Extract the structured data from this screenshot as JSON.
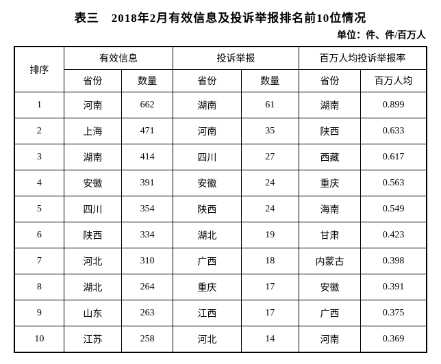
{
  "title": "表三　2018年2月有效信息及投诉举报排名前10位情况",
  "unit_label": "单位：件、件/百万人",
  "colors": {
    "text": "#000000",
    "border": "#000000",
    "background": "#ffffff"
  },
  "table": {
    "rank_header": "排序",
    "groups": [
      {
        "label": "有效信息",
        "sub": [
          "省份",
          "数量"
        ]
      },
      {
        "label": "投诉举报",
        "sub": [
          "省份",
          "数量"
        ]
      },
      {
        "label": "百万人均投诉举报率",
        "sub": [
          "省份",
          "百万人均"
        ]
      }
    ],
    "rows": [
      [
        "1",
        "河南",
        "662",
        "湖南",
        "61",
        "湖南",
        "0.899"
      ],
      [
        "2",
        "上海",
        "471",
        "河南",
        "35",
        "陕西",
        "0.633"
      ],
      [
        "3",
        "湖南",
        "414",
        "四川",
        "27",
        "西藏",
        "0.617"
      ],
      [
        "4",
        "安徽",
        "391",
        "安徽",
        "24",
        "重庆",
        "0.563"
      ],
      [
        "5",
        "四川",
        "354",
        "陕西",
        "24",
        "海南",
        "0.549"
      ],
      [
        "6",
        "陕西",
        "334",
        "湖北",
        "19",
        "甘肃",
        "0.423"
      ],
      [
        "7",
        "河北",
        "310",
        "广西",
        "18",
        "内蒙古",
        "0.398"
      ],
      [
        "8",
        "湖北",
        "264",
        "重庆",
        "17",
        "安徽",
        "0.391"
      ],
      [
        "9",
        "山东",
        "263",
        "江西",
        "17",
        "广西",
        "0.375"
      ],
      [
        "10",
        "江苏",
        "258",
        "河北",
        "14",
        "河南",
        "0.369"
      ]
    ]
  }
}
